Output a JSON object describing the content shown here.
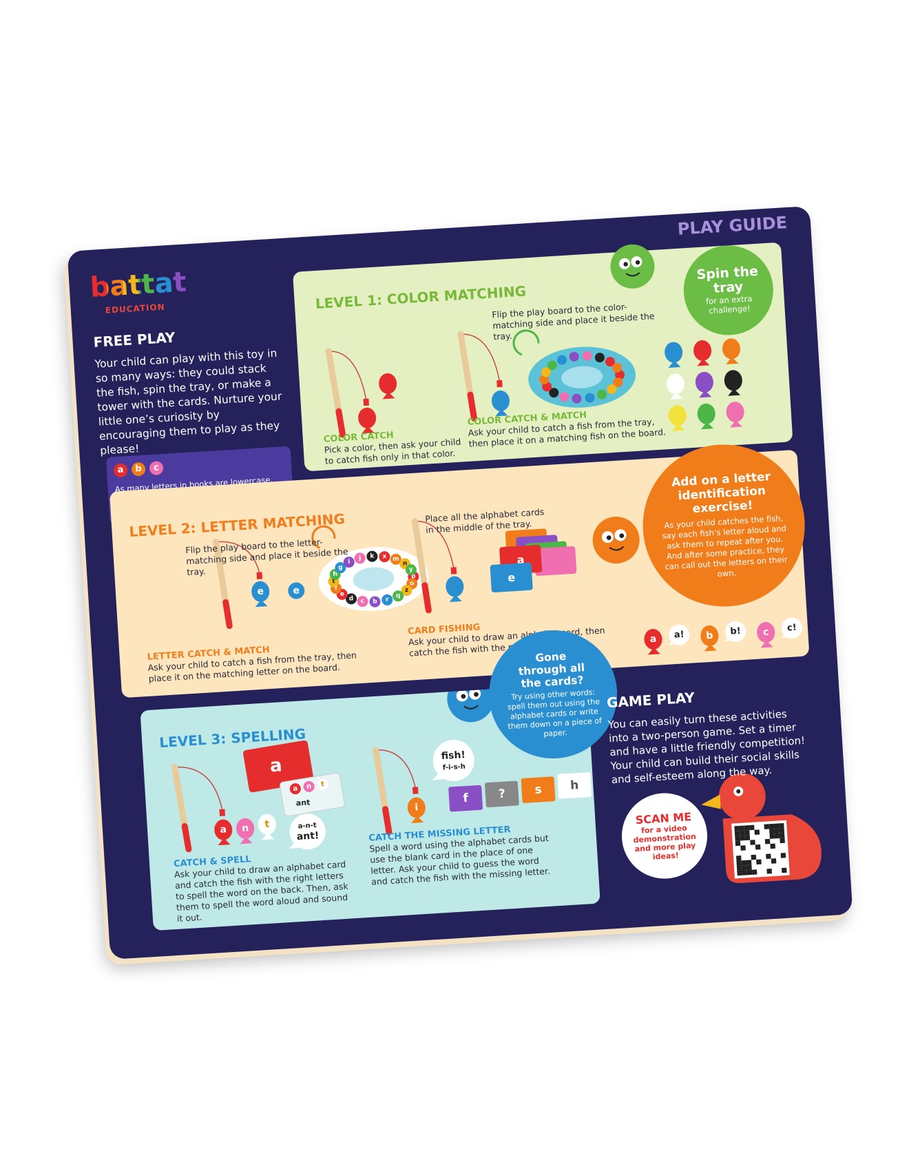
{
  "header": {
    "brand": "battat",
    "sub": "EDUCATION",
    "guide": "PLAY GUIDE"
  },
  "free_play": {
    "title": "FREE PLAY",
    "text": "Your child can play with this toy in so many ways: they could stack the fish, spin the tray, or make a tower with the cards. Nurture your little one’s curiosity by encouraging them to play as they please!",
    "note_letters": [
      "a",
      "b",
      "c"
    ],
    "note": "As many letters in books are lowercase, getting a head start on learning lowercase letters can help your child read!"
  },
  "level1": {
    "title": "LEVEL 1: COLOR MATCHING",
    "instruction": "Flip the play board to the color-matching side and place it beside the tray.",
    "activities": [
      {
        "title": "COLOR CATCH",
        "text": "Pick a color, then ask your child to catch fish only in that color."
      },
      {
        "title": "COLOR CATCH & MATCH",
        "text": "Ask your child to catch a fish from the tray, then place it on a matching fish on the board."
      }
    ],
    "bubble": {
      "title": "Spin the tray",
      "text": "for an extra challenge!"
    }
  },
  "level2": {
    "title": "LEVEL 2: LETTER MATCHING",
    "instruction": "Flip the play board to the letter-matching side and place it beside the tray.",
    "instruction2": "Place all the alphabet cards in the middle of the tray.",
    "activities": [
      {
        "title": "LETTER CATCH & MATCH",
        "text": "Ask your child to catch a fish from the tray, then place it on the matching letter on the board."
      },
      {
        "title": "CARD FISHING",
        "text": "Ask your child to draw an alphabet card, then catch the fish with the matching letter."
      }
    ],
    "fish_letter": "e",
    "board_letters": [
      "p",
      "o",
      "z",
      "q",
      "r",
      "b",
      "c",
      "d",
      "e",
      "f",
      "t",
      "h",
      "g",
      "i",
      "j",
      "k",
      "x",
      "m",
      "n",
      "y"
    ],
    "card_letters": [
      "a",
      "e"
    ],
    "examples": [
      {
        "fish": "a",
        "say": "a!"
      },
      {
        "fish": "b",
        "say": "b!"
      },
      {
        "fish": "c",
        "say": "c!"
      }
    ],
    "bubble": {
      "title": "Add on a letter identification exercise!",
      "text": "As your child catches the fish, say each fish’s letter aloud and ask them to repeat after you. And after some practice, they can call out the letters on their own."
    }
  },
  "level3": {
    "title": "LEVEL 3: SPELLING",
    "activities": [
      {
        "title": "CATCH & SPELL",
        "text": "Ask your child to draw an alphabet card and catch the fish with the right letters to spell the word on the back. Then, ask them to spell the word aloud and sound it out."
      },
      {
        "title": "CATCH THE MISSING LETTER",
        "text": "Spell a word using the alphabet cards but use the blank card in the place of one letter. Ask your child to guess the word and catch the fish with the missing letter."
      }
    ],
    "card_letter": "a",
    "card_back_letters": [
      "a",
      "n",
      "t"
    ],
    "card_back_word": "ant",
    "fish_letters": [
      "a",
      "n",
      "t"
    ],
    "speech1": [
      "a-n-t",
      "ant!"
    ],
    "speech2": [
      "fish!",
      "f-i-s-h"
    ],
    "fish2": "i",
    "word_cards": [
      "f",
      "?",
      "s",
      "h"
    ],
    "bubble": {
      "title": "Gone through all the cards?",
      "text": "Try using other words: spell them out using the alphabet cards or write them down on a piece of paper."
    }
  },
  "game_play": {
    "title": "GAME PLAY",
    "text": "You can easily turn these activities into a two-person game. Set a timer and have a little friendly competition! Your child can build their social skills and self-esteem along the way."
  },
  "scan": {
    "title": "SCAN ME",
    "text": "for a video demonstration and more play ideas!"
  }
}
